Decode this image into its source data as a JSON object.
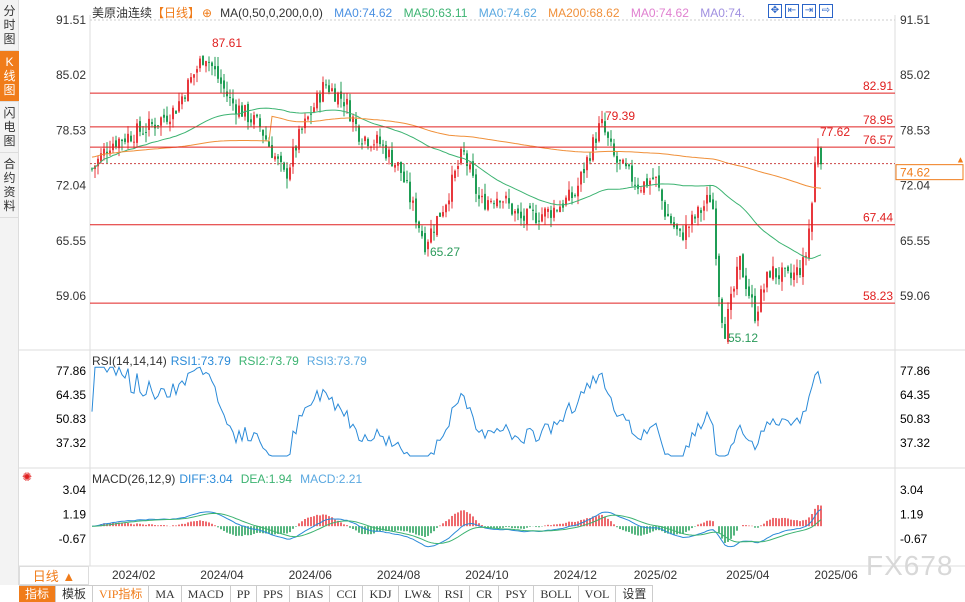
{
  "sidebar": {
    "tabs": [
      {
        "label": "分时图"
      },
      {
        "label": "K线图",
        "active": true
      },
      {
        "label": "闪电图"
      },
      {
        "label": "合约资料"
      }
    ]
  },
  "header": {
    "symbol": "美原油连续",
    "period": "【日线】",
    "ma_label": "MA(0,50,0,200,0,0)",
    "ma_values": [
      "MA0:74.62",
      "MA50:63.11",
      "MA0:74.62",
      "MA200:68.62",
      "MA0:74.62",
      "MA0:74."
    ]
  },
  "colors": {
    "up": "#e8383d",
    "down": "#1f9d55",
    "ma50": "#3cb371",
    "ma200": "#f0903a",
    "hline": "#e02020",
    "accent": "#f07c1a"
  },
  "price_axis": [
    "91.51",
    "85.02",
    "78.53",
    "72.04",
    "65.55",
    "59.06"
  ],
  "current_price": "74.62",
  "levels": [
    "82.91",
    "78.95",
    "76.57",
    "67.44",
    "58.23"
  ],
  "annotations": {
    "high1": "87.61",
    "low1": "65.27",
    "high2": "79.39",
    "low2": "55.12",
    "last_high": "77.62"
  },
  "rsi": {
    "label": "RSI(14,14,14)",
    "v1": "RSI1:73.79",
    "v2": "RSI2:73.79",
    "v3": "RSI3:73.79",
    "axis": [
      "77.86",
      "64.35",
      "50.83",
      "37.32"
    ]
  },
  "macd": {
    "label": "MACD(26,12,9)",
    "diff": "DIFF:3.04",
    "dea": "DEA:1.94",
    "macd": "MACD:2.21",
    "axis": [
      "3.04",
      "1.19",
      "-0.67"
    ]
  },
  "dates": [
    "2024/02",
    "2024/04",
    "2024/06",
    "2024/08",
    "2024/10",
    "2024/12",
    "2025/02",
    "2025/04",
    "2025/06"
  ],
  "period_selector": "日线 ▲",
  "toolbar": [
    "指标",
    "模板",
    "VIP指标",
    "MA",
    "MACD",
    "PP",
    "PPS",
    "BIAS",
    "CCI",
    "KDJ",
    "LW&",
    "RSI",
    "CR",
    "PSY",
    "BOLL",
    "VOL",
    "设置"
  ],
  "watermark": "FX678",
  "chart_data": {
    "type": "candlestick",
    "keypoints": [
      [
        "2024/01",
        74
      ],
      [
        "2024/04",
        87.61
      ],
      [
        "2024/06",
        73
      ],
      [
        "2024/07",
        84
      ],
      [
        "2024/09",
        65.27
      ],
      [
        "2024/10",
        76
      ],
      [
        "2024/11",
        68
      ],
      [
        "2025/01",
        79.39
      ],
      [
        "2025/03",
        66
      ],
      [
        "2025/04",
        55.12
      ],
      [
        "2025/05",
        61
      ],
      [
        "2025/06",
        77.62
      ],
      [
        "2025/06",
        74.62
      ]
    ]
  }
}
